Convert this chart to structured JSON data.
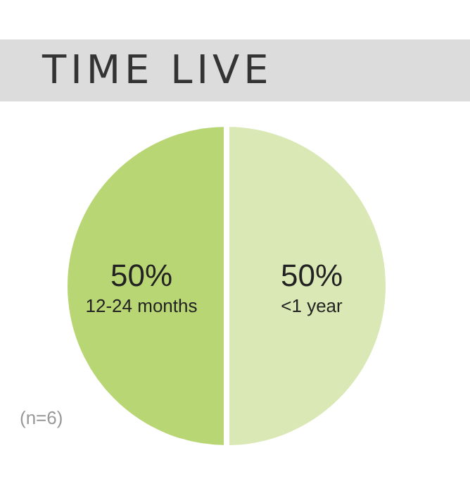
{
  "chart_data": {
    "type": "pie",
    "title": "TIME LIVE",
    "categories": [
      "<1 year",
      "12-24 months"
    ],
    "values": [
      50,
      50
    ],
    "value_labels": [
      "50%",
      "50%"
    ],
    "colors": [
      "#d9e8b4",
      "#b8d673"
    ],
    "annotations": [
      "(n=6)"
    ],
    "legend": false
  }
}
